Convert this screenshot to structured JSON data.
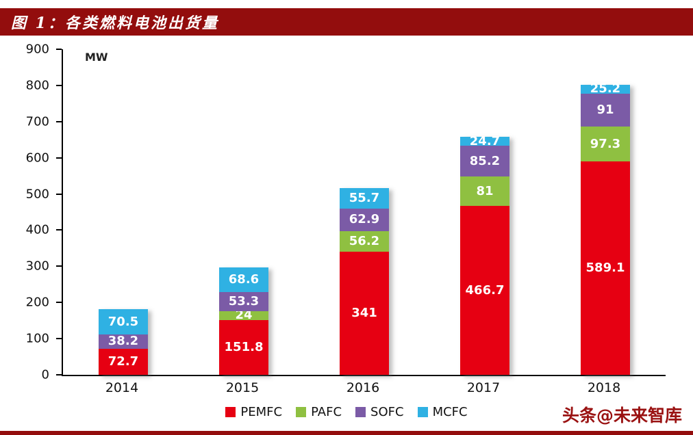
{
  "header": {
    "title": "图 1：各类燃料电池出货量"
  },
  "footer": {
    "watermark": "头条@未来智库"
  },
  "colors": {
    "header_bar": "#930d0d",
    "watermark_text": "#9a1212",
    "bottom_line": "#930d0d",
    "axis": "#000000"
  },
  "chart_data": {
    "type": "bar",
    "stacked": true,
    "title": "各类燃料电池出货量",
    "unit_label": "MW",
    "categories": [
      "2014",
      "2015",
      "2016",
      "2017",
      "2018"
    ],
    "series": [
      {
        "name": "PEMFC",
        "color": "#e60012",
        "values": [
          72.7,
          151.8,
          341,
          466.7,
          589.1
        ]
      },
      {
        "name": "PAFC",
        "color": "#8fc041",
        "values": [
          0,
          24,
          56.2,
          81,
          97.3
        ]
      },
      {
        "name": "SOFC",
        "color": "#7b5ba6",
        "values": [
          38.2,
          53.3,
          62.9,
          85.2,
          91
        ]
      },
      {
        "name": "MCFC",
        "color": "#2fb1e3",
        "values": [
          70.5,
          68.6,
          55.7,
          24.7,
          25.2
        ]
      }
    ],
    "ylim": [
      0,
      900
    ],
    "yticks": [
      0,
      100,
      200,
      300,
      400,
      500,
      600,
      700,
      800,
      900
    ],
    "grid": false,
    "legend_position": "bottom",
    "data_label_color": "#ffffff"
  }
}
